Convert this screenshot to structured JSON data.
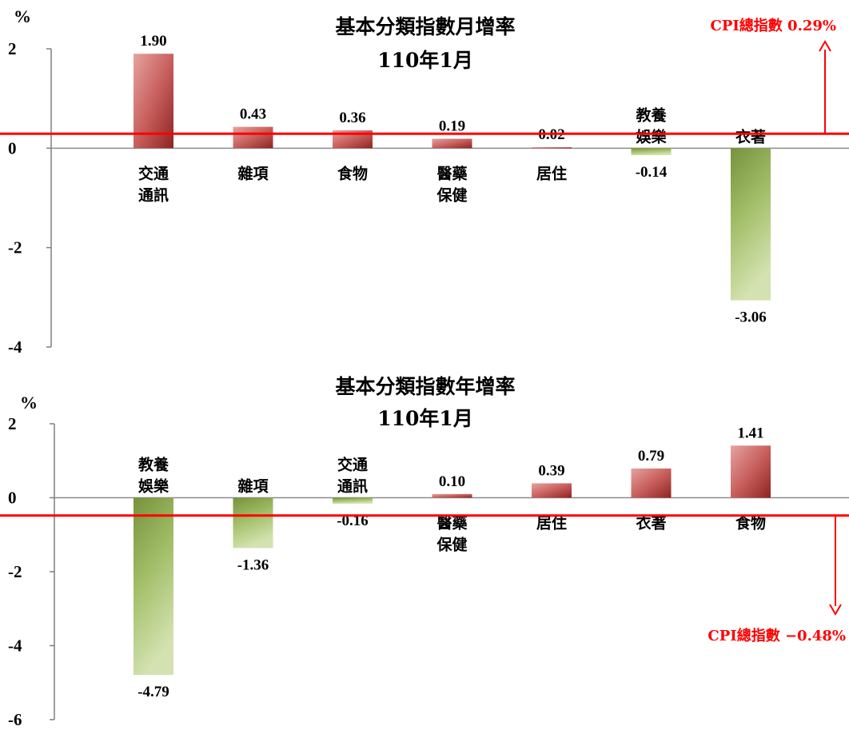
{
  "chart_data": [
    {
      "type": "bar",
      "title": "基本分類指數月增率",
      "subtitle": "110年1月",
      "ylabel": "%",
      "ylim": [
        -4,
        2
      ],
      "yticks": [
        "2",
        "0",
        "-2",
        "-4"
      ],
      "categories": [
        "交通通訊",
        "雜項",
        "食物",
        "醫藥保健",
        "居住",
        "教養娛樂",
        "衣著"
      ],
      "category_lines": [
        [
          "交通",
          "通訊"
        ],
        [
          "雜項"
        ],
        [
          "食物"
        ],
        [
          "醫藥",
          "保健"
        ],
        [
          "居住"
        ],
        [
          "教養",
          "娛樂"
        ],
        [
          "衣著"
        ]
      ],
      "values": [
        1.9,
        0.43,
        0.36,
        0.19,
        0.02,
        -0.14,
        -3.06
      ],
      "value_labels": [
        "1.90",
        "0.43",
        "0.36",
        "0.19",
        "0.02",
        "-0.14",
        "-3.06"
      ],
      "reference_line": {
        "value": 0.29,
        "label": "CPI總指數 0.29%",
        "color": "#ff0000",
        "arrow": "up"
      },
      "colors": {
        "positive": "#c0504d",
        "negative": "#9bbb59"
      }
    },
    {
      "type": "bar",
      "title": "基本分類指數年增率",
      "subtitle": "110年1月",
      "ylabel": "%",
      "ylim": [
        -6,
        2
      ],
      "yticks": [
        "2",
        "0",
        "-2",
        "-4",
        "-6"
      ],
      "categories": [
        "教養娛樂",
        "雜項",
        "交通通訊",
        "醫藥保健",
        "居住",
        "衣著",
        "食物"
      ],
      "category_lines": [
        [
          "教養",
          "娛樂"
        ],
        [
          "雜項"
        ],
        [
          "交通",
          "通訊"
        ],
        [
          "醫藥",
          "保健"
        ],
        [
          "居住"
        ],
        [
          "衣著"
        ],
        [
          "食物"
        ]
      ],
      "values": [
        -4.79,
        -1.36,
        -0.16,
        0.1,
        0.39,
        0.79,
        1.41
      ],
      "value_labels": [
        "-4.79",
        "-1.36",
        "-0.16",
        "0.10",
        "0.39",
        "0.79",
        "1.41"
      ],
      "reference_line": {
        "value": -0.48,
        "label": "CPI總指數 −0.48%",
        "color": "#ff0000",
        "arrow": "down"
      },
      "colors": {
        "positive": "#c0504d",
        "negative": "#9bbb59"
      }
    }
  ]
}
